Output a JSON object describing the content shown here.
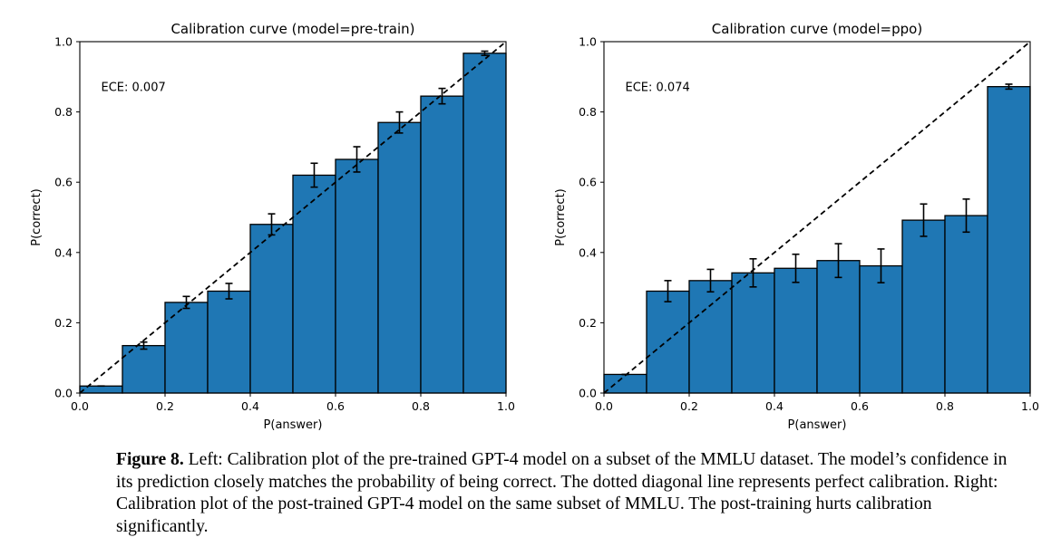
{
  "caption": {
    "label": "Figure 8.",
    "text": "Left: Calibration plot of the pre-trained GPT-4 model on a subset of the MMLU dataset. The model’s confidence in its prediction closely matches the probability of being correct. The dotted diagonal line represents perfect calibration. Right: Calibration plot of the post-trained GPT-4 model on the same subset of MMLU. The post-training hurts calibration significantly."
  },
  "colors": {
    "bar": "#1f77b4",
    "edge": "#000000",
    "diagonal": "#000000"
  },
  "chart_data": [
    {
      "type": "bar",
      "title": "Calibration curve (model=pre-train)",
      "xlabel": "P(answer)",
      "ylabel": "P(correct)",
      "xlim": [
        0,
        1
      ],
      "ylim": [
        0,
        1
      ],
      "xticks": [
        "0.0",
        "0.2",
        "0.4",
        "0.6",
        "0.8",
        "1.0"
      ],
      "yticks": [
        "0.0",
        "0.2",
        "0.4",
        "0.6",
        "0.8",
        "1.0"
      ],
      "annotation": "ECE: 0.007",
      "bin_edges": [
        0,
        0.1,
        0.2,
        0.3,
        0.4,
        0.5,
        0.6,
        0.7,
        0.8,
        0.9,
        1.0
      ],
      "values": [
        0.02,
        0.135,
        0.258,
        0.29,
        0.48,
        0.62,
        0.665,
        0.77,
        0.845,
        0.967
      ],
      "error": [
        0.0,
        0.01,
        0.017,
        0.022,
        0.03,
        0.034,
        0.036,
        0.03,
        0.022,
        0.006
      ],
      "diagonal": true,
      "grid": false
    },
    {
      "type": "bar",
      "title": "Calibration curve (model=ppo)",
      "xlabel": "P(answer)",
      "ylabel": "P(correct)",
      "xlim": [
        0,
        1
      ],
      "ylim": [
        0,
        1
      ],
      "xticks": [
        "0.0",
        "0.2",
        "0.4",
        "0.6",
        "0.8",
        "1.0"
      ],
      "yticks": [
        "0.0",
        "0.2",
        "0.4",
        "0.6",
        "0.8",
        "1.0"
      ],
      "annotation": "ECE: 0.074",
      "bin_edges": [
        0,
        0.1,
        0.2,
        0.3,
        0.4,
        0.5,
        0.6,
        0.7,
        0.8,
        0.9,
        1.0
      ],
      "values": [
        0.053,
        0.29,
        0.32,
        0.342,
        0.355,
        0.377,
        0.362,
        0.492,
        0.505,
        0.872
      ],
      "error": [
        0.0,
        0.03,
        0.032,
        0.04,
        0.04,
        0.048,
        0.048,
        0.046,
        0.047,
        0.007
      ],
      "diagonal": true,
      "grid": false
    }
  ]
}
